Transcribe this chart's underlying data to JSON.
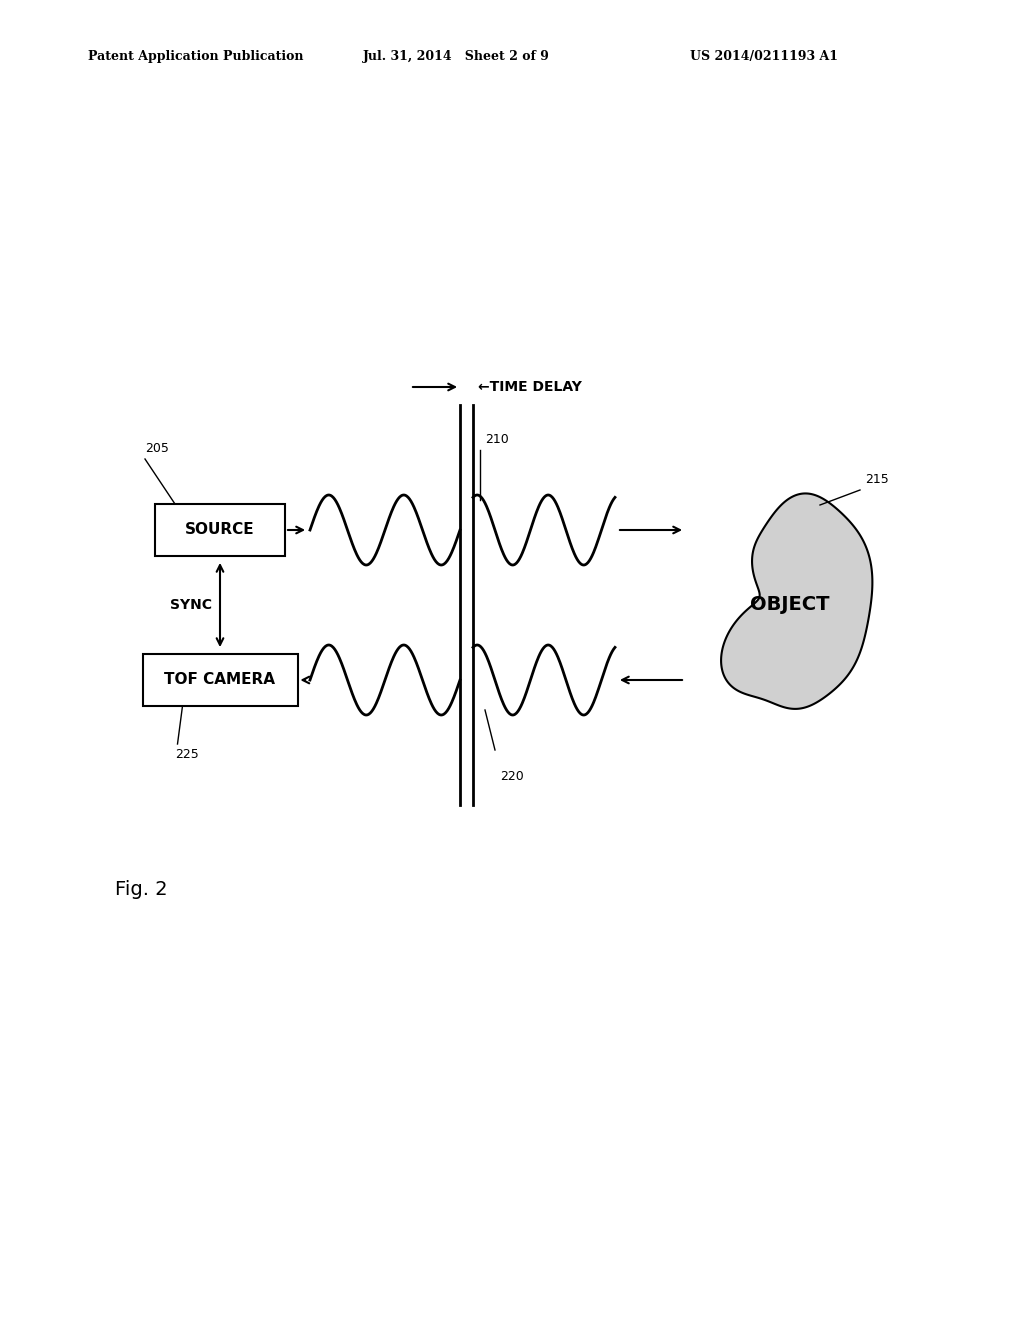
{
  "header_left": "Patent Application Publication",
  "header_mid": "Jul. 31, 2014   Sheet 2 of 9",
  "header_right": "US 2014/0211193 A1",
  "fig_label": "Fig. 2",
  "label_205": "205",
  "label_210": "210",
  "label_215": "215",
  "label_220": "220",
  "label_225": "225",
  "source_text": "SOURCE",
  "tof_text": "TOF CAMERA",
  "sync_text": "SYNC",
  "object_text": "OBJECT",
  "time_delay_text": "←TIME DELAY",
  "bg_color": "#ffffff",
  "line_color": "#000000",
  "object_fill": "#cccccc",
  "box_color": "#ffffff"
}
